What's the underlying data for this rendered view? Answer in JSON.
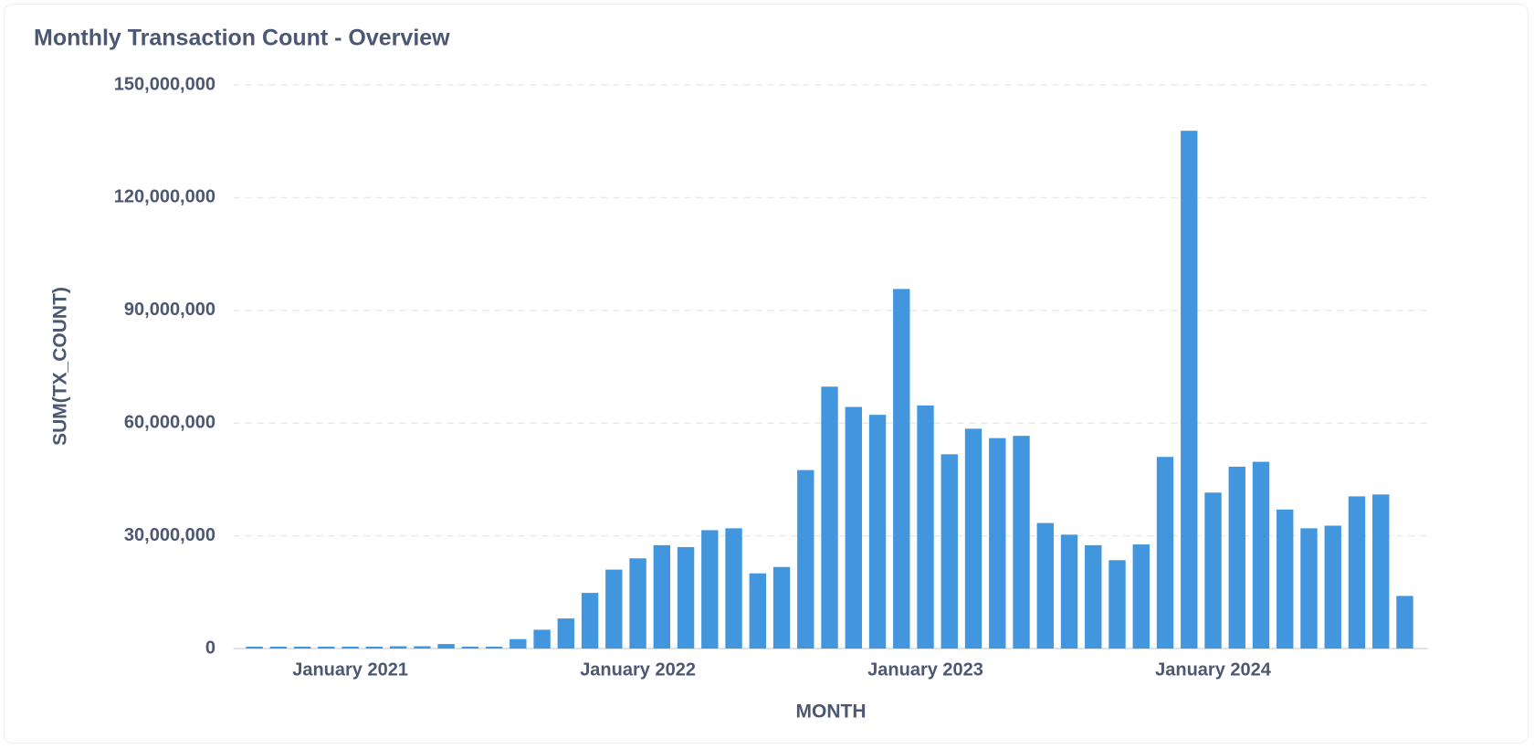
{
  "chart_data": {
    "type": "bar",
    "title": "Monthly Transaction Count - Overview",
    "y_label": "SUM(TX_COUNT)",
    "x_label": "MONTH",
    "color": "#4196dd",
    "grid": true,
    "categories": [
      null,
      null,
      null,
      null,
      "January 2021",
      null,
      null,
      null,
      null,
      null,
      null,
      null,
      null,
      null,
      null,
      null,
      "January 2022",
      null,
      null,
      null,
      null,
      null,
      null,
      null,
      null,
      null,
      null,
      null,
      "January 2023",
      null,
      null,
      null,
      null,
      null,
      null,
      null,
      null,
      null,
      null,
      null,
      "January 2024",
      null,
      null,
      null,
      null,
      null,
      null,
      null,
      null
    ],
    "values": [
      500000,
      500000,
      500000,
      500000,
      500000,
      500000,
      600000,
      600000,
      1200000,
      500000,
      500000,
      2500000,
      5000000,
      8000000,
      14800000,
      21000000,
      24000000,
      27500000,
      27000000,
      31500000,
      32000000,
      20000000,
      21700000,
      47500000,
      69700000,
      64300000,
      62200000,
      95700000,
      64700000,
      51700000,
      58500000,
      56000000,
      56600000,
      33400000,
      30300000,
      27500000,
      23500000,
      27700000,
      51000000,
      137800000,
      41500000,
      48400000,
      49700000,
      37000000,
      32000000,
      32700000,
      40500000,
      41000000,
      14000000
    ],
    "ylim": [
      0,
      150000000
    ],
    "yticks": [
      0,
      {
        "value": 30000000,
        "label": "30,000,000"
      },
      {
        "value": 60000000,
        "label": "60,000,000"
      },
      {
        "value": 90000000,
        "label": "90,000,000"
      },
      {
        "value": 120000000,
        "label": "120,000,000"
      },
      {
        "value": 150000000,
        "label": "150,000,000"
      }
    ]
  }
}
